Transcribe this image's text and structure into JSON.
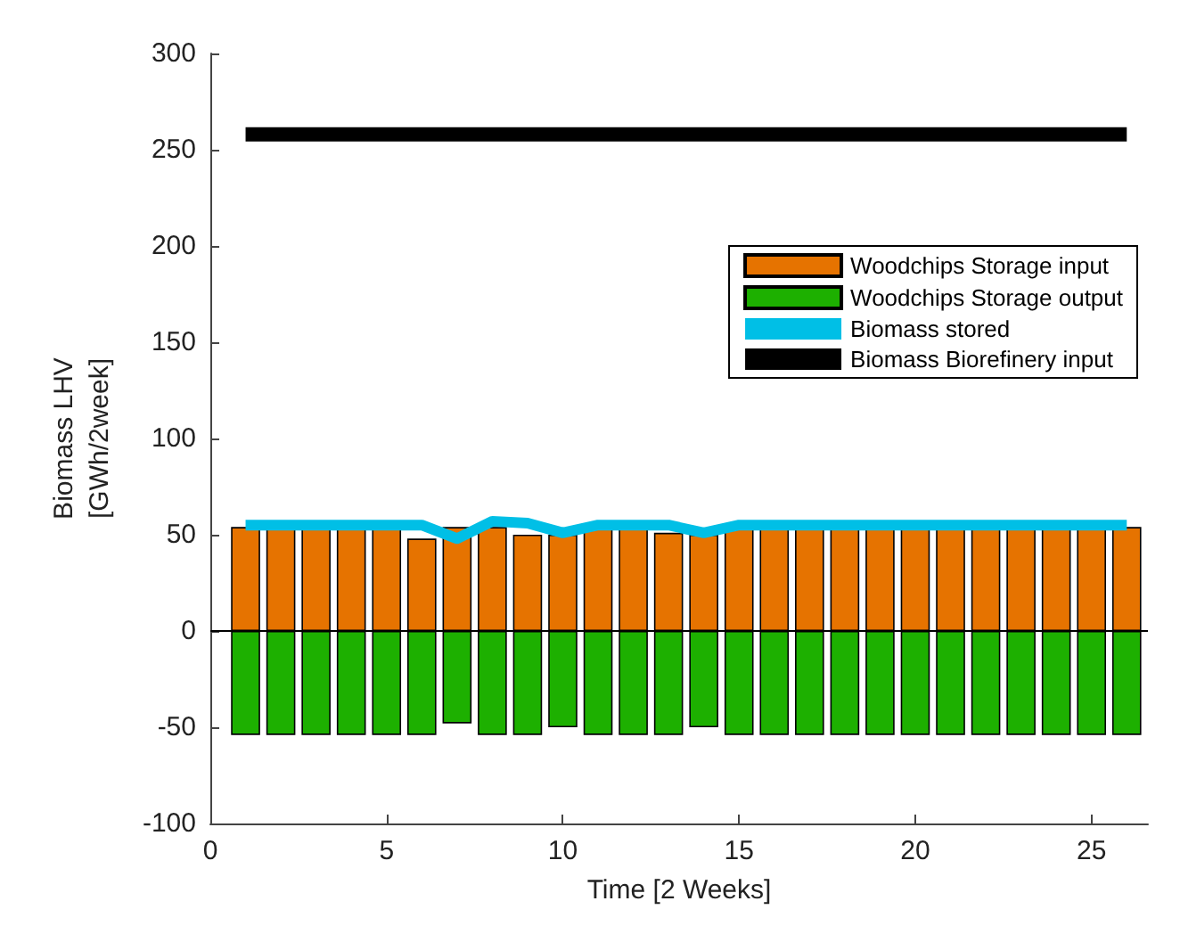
{
  "chart_data": {
    "type": "bar",
    "stacked": true,
    "xlabel": "Time [2 Weeks]",
    "ylabel": "Biomass LHV\n[GWh/2week]",
    "x": [
      1,
      2,
      3,
      4,
      5,
      6,
      7,
      8,
      9,
      10,
      11,
      12,
      13,
      14,
      15,
      16,
      17,
      18,
      19,
      20,
      21,
      22,
      23,
      24,
      25,
      26
    ],
    "xlim": [
      0,
      26.6
    ],
    "xticks": [
      0,
      5,
      10,
      15,
      20,
      25
    ],
    "ylim": [
      -100,
      300
    ],
    "yticks": [
      -100,
      -50,
      0,
      50,
      100,
      150,
      200,
      250,
      300
    ],
    "series": [
      {
        "name": "Woodchips Storage input",
        "color": "#e67300",
        "values": [
          54,
          54,
          54,
          54,
          54,
          48,
          54,
          54,
          50,
          50,
          54,
          54,
          51,
          50,
          54,
          54,
          54,
          54,
          54,
          54,
          54,
          54,
          54,
          54,
          54,
          54
        ]
      },
      {
        "name": "Woodchips Storage output",
        "color": "#1db000",
        "values": [
          -54,
          -54,
          -54,
          -54,
          -54,
          -54,
          -48,
          -54,
          -54,
          -50,
          -54,
          -54,
          -54,
          -50,
          -54,
          -54,
          -54,
          -54,
          -54,
          -54,
          -54,
          -54,
          -54,
          -54,
          -54,
          -54
        ]
      },
      {
        "name": "Biomass stored",
        "type": "line",
        "color": "#00bfe6",
        "values": [
          55,
          55,
          55,
          55,
          55,
          55,
          48,
          57,
          56,
          51,
          55,
          55,
          55,
          51,
          55,
          55,
          55,
          55,
          55,
          55,
          55,
          55,
          55,
          55,
          55,
          55
        ]
      },
      {
        "name": "Biomass Biorefinery input",
        "type": "line",
        "color": "#000000",
        "values": [
          258,
          258,
          258,
          258,
          258,
          258,
          258,
          258,
          258,
          258,
          258,
          258,
          258,
          258,
          258,
          258,
          258,
          258,
          258,
          258,
          258,
          258,
          258,
          258,
          258,
          258
        ]
      }
    ],
    "legend": "right",
    "grid": false,
    "marker": "none",
    "line_style": "solid"
  }
}
